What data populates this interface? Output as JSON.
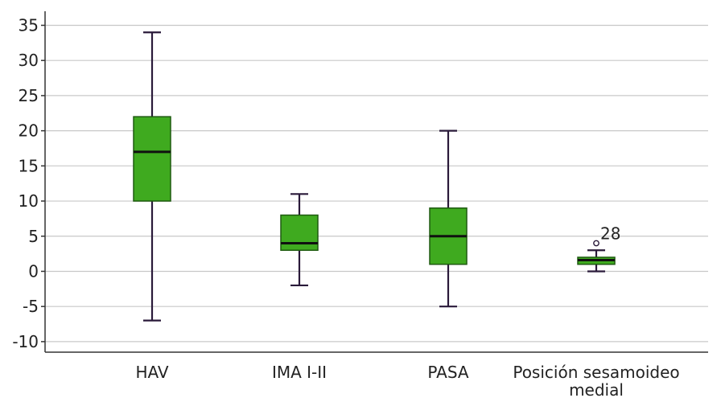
{
  "chart_data": {
    "type": "boxplot",
    "title": "",
    "xlabel": "",
    "ylabel": "",
    "ylim": [
      -11.5,
      37
    ],
    "yticks": [
      -10,
      -5,
      0,
      5,
      10,
      15,
      20,
      25,
      30,
      35
    ],
    "ytick_labels": [
      "-10",
      "-5",
      "0",
      "5",
      "10",
      "15",
      "20",
      "25",
      "30",
      "35"
    ],
    "grid": true,
    "legend": "none",
    "categories": [
      {
        "label_lines": [
          "HAV"
        ]
      },
      {
        "label_lines": [
          "IMA I-II"
        ]
      },
      {
        "label_lines": [
          "PASA"
        ]
      },
      {
        "label_lines": [
          "Posición sesamoideo",
          "medial"
        ]
      }
    ],
    "boxes": [
      {
        "min": -7,
        "q1": 10,
        "median": 17,
        "q3": 22,
        "max": 34,
        "outliers": []
      },
      {
        "min": -2,
        "q1": 3,
        "median": 4,
        "q3": 8,
        "max": 11,
        "outliers": []
      },
      {
        "min": -5,
        "q1": 1,
        "median": 5,
        "q3": 9,
        "max": 20,
        "outliers": []
      },
      {
        "min": 0,
        "q1": 1,
        "median": 1.6,
        "q3": 2,
        "max": 3,
        "outliers": [
          {
            "value": 4,
            "label": "28"
          }
        ]
      }
    ],
    "colors": {
      "box_fill": "#3faa1f",
      "box_stroke": "#1e5a10",
      "whisker": "#2a1a3a",
      "median": "#101010",
      "grid": "#c8c8c8",
      "axis": "#333333"
    }
  }
}
